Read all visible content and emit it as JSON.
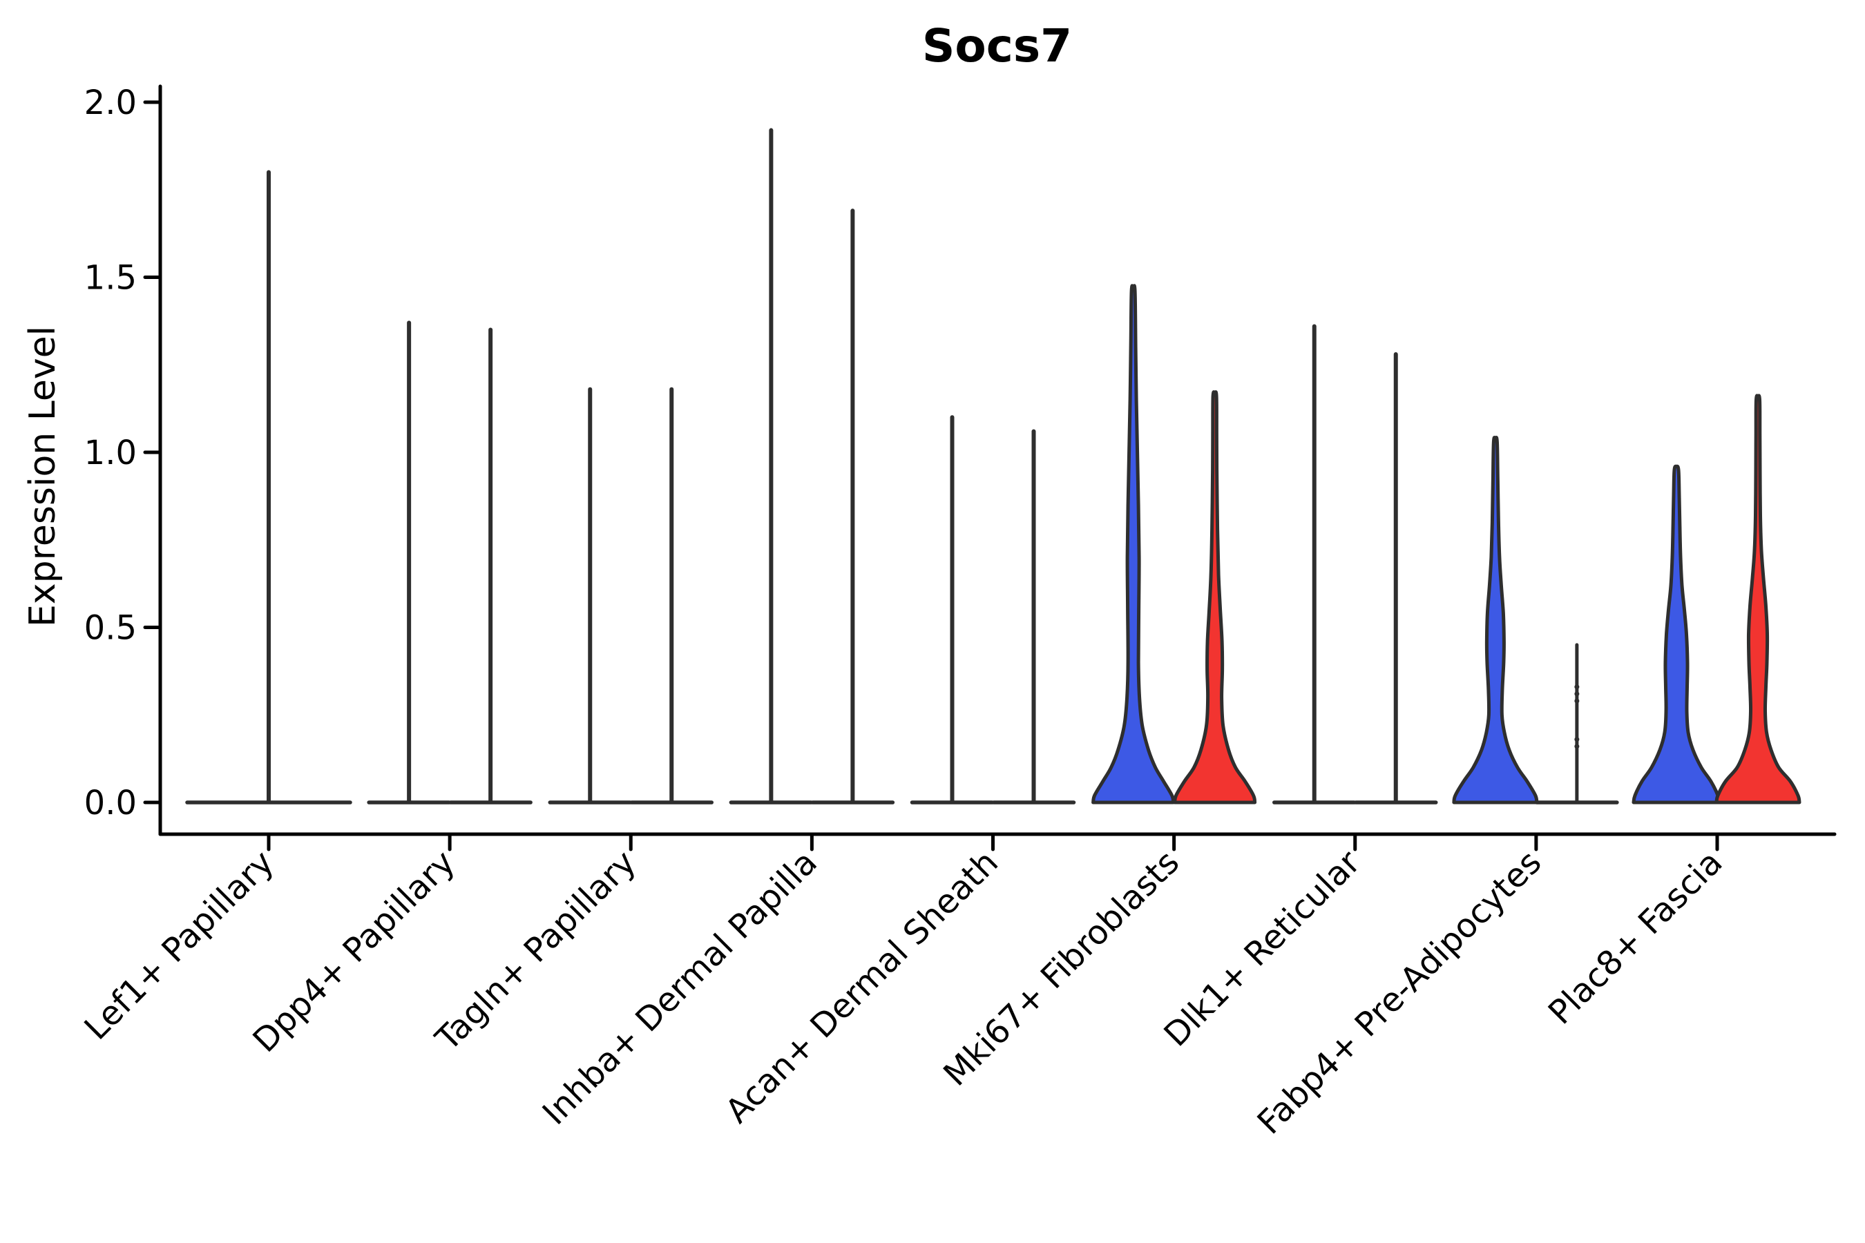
{
  "chart_data": {
    "type": "violin",
    "title": "Socs7",
    "ylabel": "Expression Level",
    "ylim": [
      0,
      2.05
    ],
    "yticks": [
      0.0,
      0.5,
      1.0,
      1.5,
      2.0
    ],
    "grid": false,
    "legend": null,
    "palette": {
      "blue": "#3D59E5",
      "red": "#F23430",
      "outline": "#2E2E2E",
      "axis": "#000000"
    },
    "series_note": "each category holds two violins (blue = left condition, red = right condition); kind spike = distribution collapsed to a thin line at 0 with a tall max whisker; values are Expression Level maxima",
    "categories": [
      "Lef1+ Papillary",
      "Dpp4+ Papillary",
      "Tagln+ Papillary",
      "Inhba+ Dermal Papilla",
      "Acan+ Dermal Sheath",
      "Mki67+ Fibroblasts",
      "Dlk1+ Reticular",
      "Fabp4+ Pre-Adipocytes",
      "Plac8+ Fascia"
    ],
    "groups": [
      {
        "label": "Lef1+ Papillary",
        "violins": [
          {
            "pos": 0,
            "kind": "spike",
            "fill": "none",
            "max": 1.8
          }
        ]
      },
      {
        "label": "Dpp4+ Papillary",
        "violins": [
          {
            "pos": -1,
            "kind": "spike",
            "fill": "blue",
            "max": 1.37
          },
          {
            "pos": 1,
            "kind": "spike",
            "fill": "red",
            "max": 1.35
          }
        ]
      },
      {
        "label": "Tagln+ Papillary",
        "violins": [
          {
            "pos": -1,
            "kind": "spike",
            "fill": "blue",
            "max": 1.18
          },
          {
            "pos": 1,
            "kind": "spike",
            "fill": "red",
            "max": 1.18
          }
        ]
      },
      {
        "label": "Inhba+ Dermal Papilla",
        "violins": [
          {
            "pos": -1,
            "kind": "spike",
            "fill": "blue",
            "max": 1.92
          },
          {
            "pos": 1,
            "kind": "spike",
            "fill": "red",
            "max": 1.69
          }
        ]
      },
      {
        "label": "Acan+ Dermal Sheath",
        "violins": [
          {
            "pos": -1,
            "kind": "spike",
            "fill": "blue",
            "max": 1.1
          },
          {
            "pos": 1,
            "kind": "spike",
            "fill": "red",
            "max": 1.06
          }
        ]
      },
      {
        "label": "Mki67+ Fibroblasts",
        "violins": [
          {
            "pos": -1,
            "kind": "body",
            "fill": "blue",
            "max": 1.46,
            "profile": [
              [
                0,
                58
              ],
              [
                0.02,
                56
              ],
              [
                0.06,
                44
              ],
              [
                0.1,
                32
              ],
              [
                0.15,
                22
              ],
              [
                0.22,
                13
              ],
              [
                0.3,
                9
              ],
              [
                0.4,
                7.5
              ],
              [
                0.55,
                8
              ],
              [
                0.7,
                8.5
              ],
              [
                0.85,
                7.5
              ],
              [
                1.0,
                6
              ],
              [
                1.15,
                4.5
              ],
              [
                1.3,
                3.5
              ],
              [
                1.46,
                2.5
              ]
            ]
          },
          {
            "pos": 1,
            "kind": "body",
            "fill": "red",
            "max": 1.16,
            "profile": [
              [
                0,
                58
              ],
              [
                0.02,
                56
              ],
              [
                0.06,
                44
              ],
              [
                0.1,
                30
              ],
              [
                0.15,
                20
              ],
              [
                0.22,
                12
              ],
              [
                0.3,
                10
              ],
              [
                0.38,
                11
              ],
              [
                0.46,
                10.5
              ],
              [
                0.55,
                8
              ],
              [
                0.65,
                5.5
              ],
              [
                0.78,
                4
              ],
              [
                0.95,
                3
              ],
              [
                1.05,
                2.8
              ],
              [
                1.16,
                2.5
              ]
            ]
          }
        ]
      },
      {
        "label": "Dlk1+ Reticular",
        "violins": [
          {
            "pos": -1,
            "kind": "spike",
            "fill": "blue",
            "max": 1.36
          },
          {
            "pos": 1,
            "kind": "spike",
            "fill": "red",
            "max": 1.28
          }
        ]
      },
      {
        "label": "Fabp4+ Pre-Adipocytes",
        "violins": [
          {
            "pos": -1,
            "kind": "body",
            "fill": "blue",
            "max": 1.03,
            "profile": [
              [
                0,
                60
              ],
              [
                0.02,
                58
              ],
              [
                0.06,
                46
              ],
              [
                0.1,
                32
              ],
              [
                0.15,
                20
              ],
              [
                0.2,
                13
              ],
              [
                0.25,
                9.5
              ],
              [
                0.32,
                10
              ],
              [
                0.4,
                12
              ],
              [
                0.46,
                12.5
              ],
              [
                0.54,
                11.5
              ],
              [
                0.62,
                8.5
              ],
              [
                0.7,
                6
              ],
              [
                0.8,
                4.5
              ],
              [
                0.92,
                3.5
              ],
              [
                1.03,
                2.5
              ]
            ]
          },
          {
            "pos": 1,
            "kind": "stick",
            "fill": "red",
            "max": 0.45,
            "dots": [
              0.16,
              0.18,
              0.29,
              0.31,
              0.33
            ]
          }
        ]
      },
      {
        "label": "Plac8+ Fascia",
        "violins": [
          {
            "pos": -1,
            "kind": "body",
            "fill": "blue",
            "max": 0.95,
            "profile": [
              [
                0,
                62
              ],
              [
                0.02,
                60
              ],
              [
                0.06,
                50
              ],
              [
                0.1,
                36
              ],
              [
                0.15,
                24
              ],
              [
                0.2,
                17
              ],
              [
                0.26,
                15
              ],
              [
                0.33,
                15.5
              ],
              [
                0.4,
                16
              ],
              [
                0.48,
                14.5
              ],
              [
                0.55,
                11.5
              ],
              [
                0.62,
                8
              ],
              [
                0.7,
                6
              ],
              [
                0.78,
                5
              ],
              [
                0.88,
                4
              ],
              [
                0.95,
                3
              ]
            ]
          },
          {
            "pos": 1,
            "kind": "body",
            "fill": "red",
            "max": 1.15,
            "profile": [
              [
                0,
                60
              ],
              [
                0.02,
                58
              ],
              [
                0.06,
                47
              ],
              [
                0.1,
                30
              ],
              [
                0.15,
                19
              ],
              [
                0.2,
                12.5
              ],
              [
                0.26,
                10.5
              ],
              [
                0.33,
                11.5
              ],
              [
                0.4,
                13
              ],
              [
                0.48,
                13.5
              ],
              [
                0.56,
                11.5
              ],
              [
                0.64,
                8
              ],
              [
                0.72,
                5
              ],
              [
                0.82,
                3.5
              ],
              [
                0.95,
                3
              ],
              [
                1.05,
                2.8
              ],
              [
                1.15,
                2.5
              ]
            ]
          }
        ]
      }
    ]
  }
}
